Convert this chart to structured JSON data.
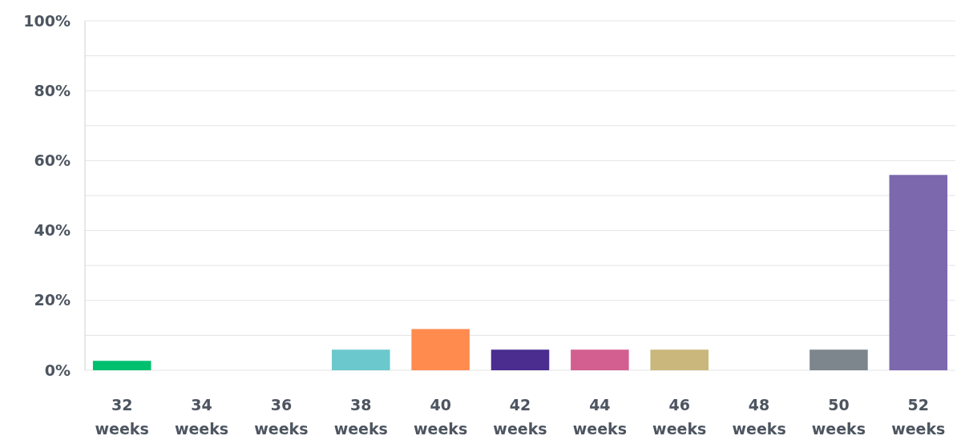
{
  "chart_data": {
    "type": "bar",
    "categories": [
      "32 weeks",
      "34 weeks",
      "36 weeks",
      "38 weeks",
      "40 weeks",
      "42 weeks",
      "44 weeks",
      "46 weeks",
      "48 weeks",
      "50 weeks",
      "52 weeks"
    ],
    "values": [
      2.7,
      0,
      0,
      5.9,
      11.8,
      5.9,
      5.9,
      5.9,
      0,
      5.9,
      55.9
    ],
    "colors": [
      "#00bf6f",
      "#a0a0a0",
      "#a0a0a0",
      "#6bc8cd",
      "#ff8b4f",
      "#4a2d8f",
      "#d25f90",
      "#c9b77b",
      "#a0a0a0",
      "#7d868c",
      "#7b68ad"
    ],
    "ylim": [
      0,
      100
    ],
    "yticks": [
      {
        "value": 0,
        "label": "0%"
      },
      {
        "value": 10,
        "label": null
      },
      {
        "value": 20,
        "label": "20%"
      },
      {
        "value": 30,
        "label": null
      },
      {
        "value": 40,
        "label": "40%"
      },
      {
        "value": 50,
        "label": null
      },
      {
        "value": 60,
        "label": "60%"
      },
      {
        "value": 70,
        "label": null
      },
      {
        "value": 80,
        "label": "80%"
      },
      {
        "value": 90,
        "label": null
      },
      {
        "value": 100,
        "label": "100%"
      }
    ],
    "grid": "y"
  }
}
